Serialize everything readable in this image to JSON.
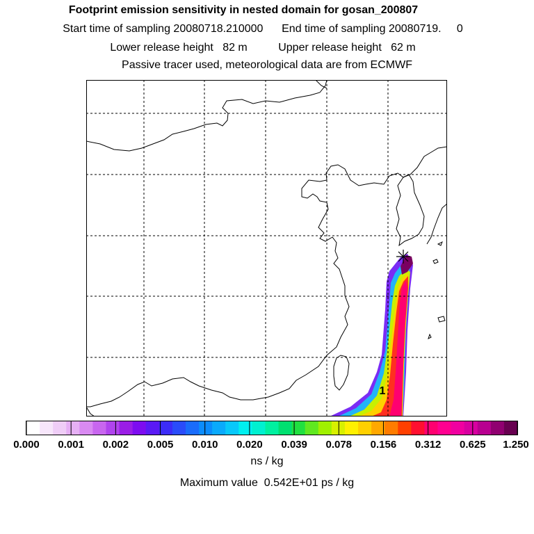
{
  "title": "Footprint emission sensitivity in nested domain for gosan_200807",
  "start_label": "Start time of sampling 20080718.210000",
  "end_label": "End time of sampling 20080719.     0",
  "lower_release": "Lower release height   82 m",
  "upper_release": "Upper release height   62 m",
  "tracer_info": "Passive tracer used, meteorological data are from ECMWF",
  "map": {
    "receptor_marker": "star-icon",
    "plume_label": "1"
  },
  "colorbar": {
    "tick_labels": [
      "0.000",
      "0.001",
      "0.002",
      "0.005",
      "0.010",
      "0.020",
      "0.039",
      "0.078",
      "0.156",
      "0.312",
      "0.625",
      "1.250"
    ],
    "colors": [
      "#ffffff",
      "#f7e6fb",
      "#efcdf7",
      "#e6b0f5",
      "#d98af2",
      "#c866ef",
      "#b044ee",
      "#9a1ee6",
      "#7d0cf0",
      "#5a1af5",
      "#3c2cf8",
      "#2a4cfa",
      "#1a6cfb",
      "#0c8cfc",
      "#0aaafc",
      "#08c8fa",
      "#00f0f0",
      "#00f0d0",
      "#00f0a0",
      "#00e070",
      "#20e040",
      "#60e820",
      "#a0f000",
      "#d8f000",
      "#fff000",
      "#ffd000",
      "#ffa800",
      "#ff7c00",
      "#ff4000",
      "#ff1030",
      "#ff0070",
      "#ff0090",
      "#f000a0",
      "#d800a0",
      "#b80090",
      "#900070",
      "#680050"
    ],
    "units": "ns / kg"
  },
  "max_value": "Maximum value  0.542E+01 ps / kg"
}
